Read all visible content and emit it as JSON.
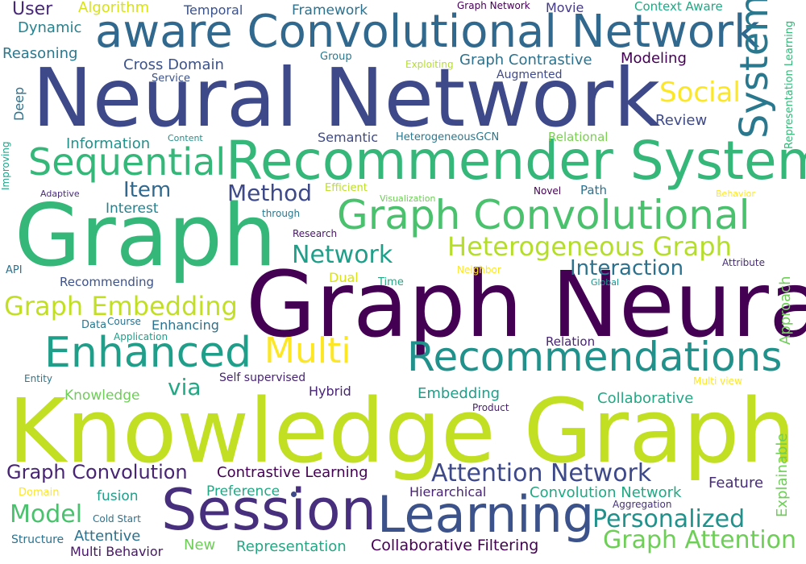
{
  "wordcloud": {
    "words": [
      {
        "text": "Knowledge Graph",
        "color": "#c2df23"
      },
      {
        "text": "Graph Neural",
        "color": "#440154"
      },
      {
        "text": "Neural Network",
        "color": "#3e4989"
      },
      {
        "text": "Graph",
        "color": "#35b779"
      },
      {
        "text": "Recommender System",
        "color": "#35b779"
      },
      {
        "text": "aware Convolutional Network",
        "color": "#31688e"
      },
      {
        "text": "Session",
        "color": "#472f7d"
      },
      {
        "text": "Learning",
        "color": "#3b528b"
      },
      {
        "text": "Graph Convolutional",
        "color": "#4ac16d"
      },
      {
        "text": "Recommendations",
        "color": "#21918c"
      },
      {
        "text": "Enhanced",
        "color": "#1f9e89"
      },
      {
        "text": "Multi",
        "color": "#fde725"
      },
      {
        "text": "Sequential",
        "color": "#35b779"
      },
      {
        "text": "System",
        "color": "#2a788e"
      },
      {
        "text": "Heterogeneous Graph",
        "color": "#b5de2b"
      },
      {
        "text": "Graph Embedding",
        "color": "#c2df23"
      },
      {
        "text": "Social",
        "color": "#fde725"
      },
      {
        "text": "Attention Network",
        "color": "#3e4989"
      },
      {
        "text": "Network",
        "color": "#1f9e89"
      },
      {
        "text": "Method",
        "color": "#3e4989"
      },
      {
        "text": "Model",
        "color": "#4ac16d"
      },
      {
        "text": "Personalized",
        "color": "#21918c"
      },
      {
        "text": "Graph Attention",
        "color": "#6ece58"
      },
      {
        "text": "Interaction",
        "color": "#2c728e"
      },
      {
        "text": "Graph Convolution",
        "color": "#482475"
      },
      {
        "text": "Item",
        "color": "#31688e"
      },
      {
        "text": "via",
        "color": "#22a884"
      },
      {
        "text": "User",
        "color": "#482878"
      },
      {
        "text": "Algorithm",
        "color": "#d8e219"
      },
      {
        "text": "Temporal",
        "color": "#3b528b"
      },
      {
        "text": "Framework",
        "color": "#2c728e"
      },
      {
        "text": "Graph Network",
        "color": "#440154"
      },
      {
        "text": "Movie",
        "color": "#443983"
      },
      {
        "text": "Context Aware",
        "color": "#22a884"
      },
      {
        "text": "Dynamic",
        "color": "#26828e"
      },
      {
        "text": "Reasoning",
        "color": "#2a788e"
      },
      {
        "text": "Cross Domain",
        "color": "#3b528b"
      },
      {
        "text": "Group",
        "color": "#2a788e"
      },
      {
        "text": "Exploiting",
        "color": "#b5de2b"
      },
      {
        "text": "Graph Contrastive",
        "color": "#2c728e"
      },
      {
        "text": "Modeling",
        "color": "#440154"
      },
      {
        "text": "Service",
        "color": "#3b528b"
      },
      {
        "text": "Augmented",
        "color": "#3e4989"
      },
      {
        "text": "Deep",
        "color": "#2c728e"
      },
      {
        "text": "Review",
        "color": "#3e4989"
      },
      {
        "text": "Representation Learning",
        "color": "#35b779"
      },
      {
        "text": "Information",
        "color": "#21918c"
      },
      {
        "text": "Content",
        "color": "#21918c"
      },
      {
        "text": "Semantic",
        "color": "#3e4989"
      },
      {
        "text": "HeterogeneousGCN",
        "color": "#2a788e"
      },
      {
        "text": "Relational",
        "color": "#7ad151"
      },
      {
        "text": "Improving",
        "color": "#1fa187"
      },
      {
        "text": "Adaptive",
        "color": "#472c7a"
      },
      {
        "text": "Interest",
        "color": "#26828e"
      },
      {
        "text": "Efficient",
        "color": "#bddf26"
      },
      {
        "text": "Visualization",
        "color": "#6ece58"
      },
      {
        "text": "Novel",
        "color": "#440154"
      },
      {
        "text": "Path",
        "color": "#2c728e"
      },
      {
        "text": "Behavior",
        "color": "#fde725"
      },
      {
        "text": "through",
        "color": "#2a788e"
      },
      {
        "text": "Research",
        "color": "#481668"
      },
      {
        "text": "API",
        "color": "#2c728e"
      },
      {
        "text": "Neighbor",
        "color": "#fde725"
      },
      {
        "text": "Attribute",
        "color": "#472c7a"
      },
      {
        "text": "Recommending",
        "color": "#3b528b"
      },
      {
        "text": "Dual",
        "color": "#d8e219"
      },
      {
        "text": "Time",
        "color": "#22a884"
      },
      {
        "text": "Global",
        "color": "#21918c"
      },
      {
        "text": "Approach",
        "color": "#6ece58"
      },
      {
        "text": "Data",
        "color": "#2a788e"
      },
      {
        "text": "Course",
        "color": "#2c728e"
      },
      {
        "text": "Enhancing",
        "color": "#2c728e"
      },
      {
        "text": "Application",
        "color": "#1f9e89"
      },
      {
        "text": "Relation",
        "color": "#482475"
      },
      {
        "text": "Entity",
        "color": "#2a788e"
      },
      {
        "text": "Self supervised",
        "color": "#482475"
      },
      {
        "text": "Multi view",
        "color": "#fde725"
      },
      {
        "text": "Knowledge",
        "color": "#6ece58"
      },
      {
        "text": "Hybrid",
        "color": "#482475"
      },
      {
        "text": "Embedding",
        "color": "#1f9e89"
      },
      {
        "text": "Collaborative",
        "color": "#22a884"
      },
      {
        "text": "Product",
        "color": "#481f70"
      },
      {
        "text": "Explainable",
        "color": "#6ece58"
      },
      {
        "text": "Contrastive Learning",
        "color": "#440154"
      },
      {
        "text": "Domain",
        "color": "#fde725"
      },
      {
        "text": "fusion",
        "color": "#1f9e89"
      },
      {
        "text": "Preference",
        "color": "#22a884"
      },
      {
        "text": "Hierarchical",
        "color": "#482475"
      },
      {
        "text": "Convolution Network",
        "color": "#22a884"
      },
      {
        "text": "Feature",
        "color": "#472c7a"
      },
      {
        "text": "Cold Start",
        "color": "#2c728e"
      },
      {
        "text": "Aggregation",
        "color": "#46327e"
      },
      {
        "text": "Structure",
        "color": "#2c728e"
      },
      {
        "text": "Attentive",
        "color": "#2c728e"
      },
      {
        "text": "New",
        "color": "#6ece58"
      },
      {
        "text": "Representation",
        "color": "#22a884"
      },
      {
        "text": "Collaborative Filtering",
        "color": "#440154"
      },
      {
        "text": "Multi Behavior",
        "color": "#481668"
      }
    ]
  }
}
